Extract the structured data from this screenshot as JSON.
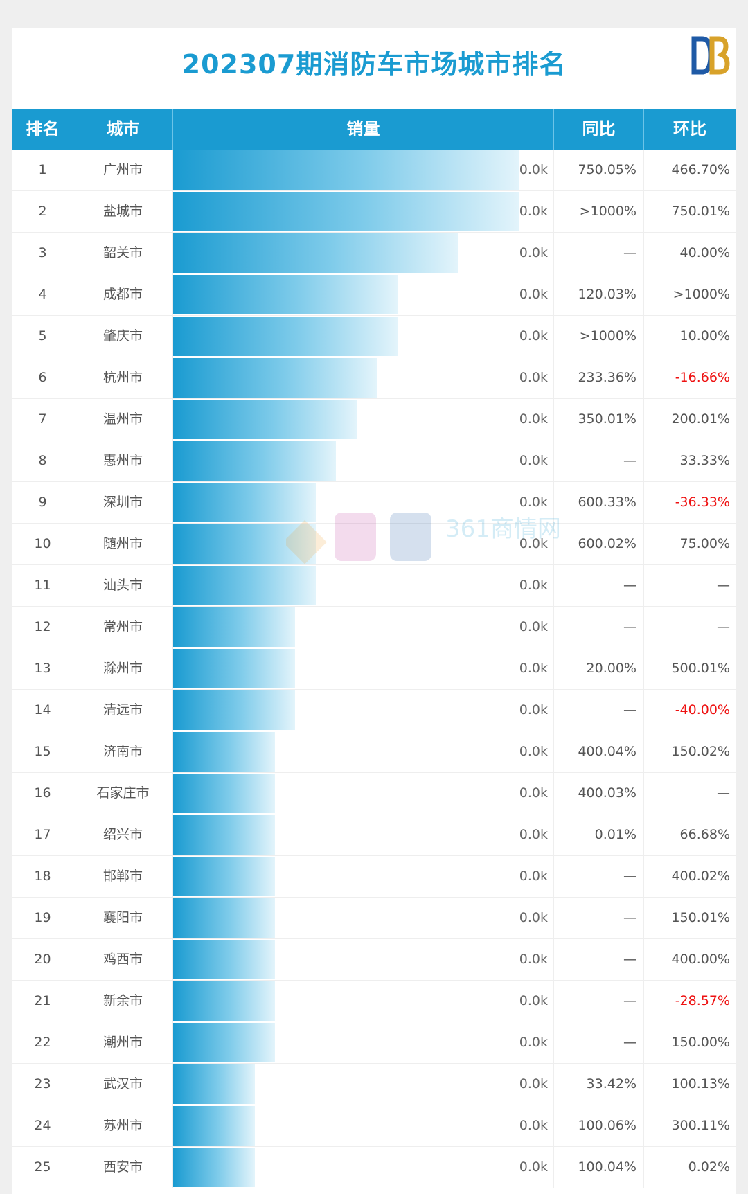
{
  "title": "202307期消防车市场城市排名",
  "logo_icon": "db-logo-icon",
  "watermark_text": "361商情网",
  "colors": {
    "header_bg": "#1a9bd1",
    "title": "#1a9bd1",
    "bar_start": "#1a9bd1",
    "bar_end": "#e3f4fb",
    "negative": "#ee1111"
  },
  "columns": {
    "rank": "排名",
    "city": "城市",
    "sales": "销量",
    "yoy": "同比",
    "mom": "环比"
  },
  "chart_data": {
    "type": "bar",
    "orientation": "horizontal",
    "title": "202307期消防车市场城市排名",
    "categories": [
      "广州市",
      "盐城市",
      "韶关市",
      "成都市",
      "肇庆市",
      "杭州市",
      "温州市",
      "惠州市",
      "深圳市",
      "随州市",
      "汕头市",
      "常州市",
      "滁州市",
      "清远市",
      "济南市",
      "石家庄市",
      "绍兴市",
      "邯郸市",
      "襄阳市",
      "鸡西市",
      "新余市",
      "潮州市",
      "武汉市",
      "苏州市",
      "西安市"
    ],
    "values": [
      17,
      17,
      14,
      11,
      11,
      10,
      9,
      8,
      7,
      7,
      7,
      6,
      6,
      6,
      5,
      5,
      5,
      5,
      5,
      5,
      5,
      5,
      4,
      4,
      4
    ],
    "value_labels": [
      "0.0k",
      "0.0k",
      "0.0k",
      "0.0k",
      "0.0k",
      "0.0k",
      "0.0k",
      "0.0k",
      "0.0k",
      "0.0k",
      "0.0k",
      "0.0k",
      "0.0k",
      "0.0k",
      "0.0k",
      "0.0k",
      "0.0k",
      "0.0k",
      "0.0k",
      "0.0k",
      "0.0k",
      "0.0k",
      "0.0k",
      "0.0k",
      "0.0k"
    ],
    "xlim": [
      0,
      17
    ]
  },
  "rows": [
    {
      "rank": "1",
      "city": "广州市",
      "yoy": "750.05%",
      "mom": "466.70%"
    },
    {
      "rank": "2",
      "city": "盐城市",
      "yoy": ">1000%",
      "mom": "750.01%"
    },
    {
      "rank": "3",
      "city": "韶关市",
      "yoy": "—",
      "mom": "40.00%"
    },
    {
      "rank": "4",
      "city": "成都市",
      "yoy": "120.03%",
      "mom": ">1000%"
    },
    {
      "rank": "5",
      "city": "肇庆市",
      "yoy": ">1000%",
      "mom": "10.00%"
    },
    {
      "rank": "6",
      "city": "杭州市",
      "yoy": "233.36%",
      "mom": "-16.66%"
    },
    {
      "rank": "7",
      "city": "温州市",
      "yoy": "350.01%",
      "mom": "200.01%"
    },
    {
      "rank": "8",
      "city": "惠州市",
      "yoy": "—",
      "mom": "33.33%"
    },
    {
      "rank": "9",
      "city": "深圳市",
      "yoy": "600.33%",
      "mom": "-36.33%"
    },
    {
      "rank": "10",
      "city": "随州市",
      "yoy": "600.02%",
      "mom": "75.00%"
    },
    {
      "rank": "11",
      "city": "汕头市",
      "yoy": "—",
      "mom": "—"
    },
    {
      "rank": "12",
      "city": "常州市",
      "yoy": "—",
      "mom": "—"
    },
    {
      "rank": "13",
      "city": "滁州市",
      "yoy": "20.00%",
      "mom": "500.01%"
    },
    {
      "rank": "14",
      "city": "清远市",
      "yoy": "—",
      "mom": "-40.00%"
    },
    {
      "rank": "15",
      "city": "济南市",
      "yoy": "400.04%",
      "mom": "150.02%"
    },
    {
      "rank": "16",
      "city": "石家庄市",
      "yoy": "400.03%",
      "mom": "—"
    },
    {
      "rank": "17",
      "city": "绍兴市",
      "yoy": "0.01%",
      "mom": "66.68%"
    },
    {
      "rank": "18",
      "city": "邯郸市",
      "yoy": "—",
      "mom": "400.02%"
    },
    {
      "rank": "19",
      "city": "襄阳市",
      "yoy": "—",
      "mom": "150.01%"
    },
    {
      "rank": "20",
      "city": "鸡西市",
      "yoy": "—",
      "mom": "400.00%"
    },
    {
      "rank": "21",
      "city": "新余市",
      "yoy": "—",
      "mom": "-28.57%"
    },
    {
      "rank": "22",
      "city": "潮州市",
      "yoy": "—",
      "mom": "150.00%"
    },
    {
      "rank": "23",
      "city": "武汉市",
      "yoy": "33.42%",
      "mom": "100.13%"
    },
    {
      "rank": "24",
      "city": "苏州市",
      "yoy": "100.06%",
      "mom": "300.11%"
    },
    {
      "rank": "25",
      "city": "西安市",
      "yoy": "100.04%",
      "mom": "0.02%"
    }
  ]
}
